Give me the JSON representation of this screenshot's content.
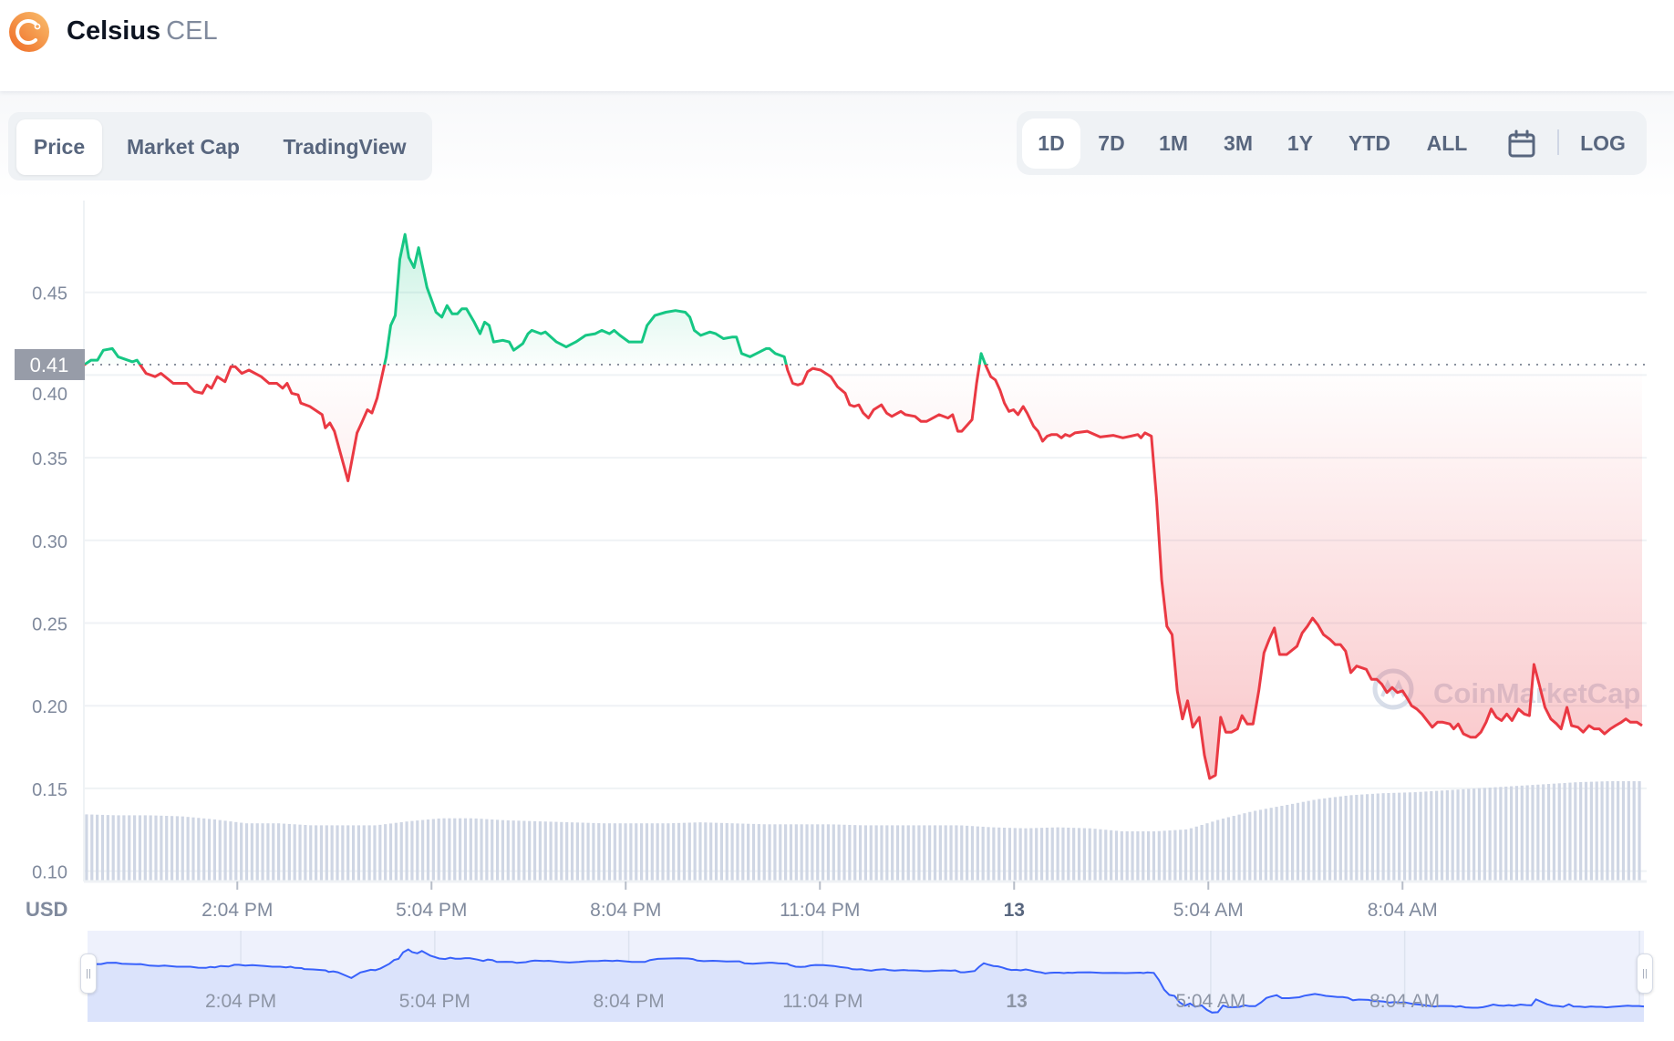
{
  "header": {
    "name": "Celsius",
    "symbol": "CEL",
    "logo_icon": "celsius-logo"
  },
  "tabs": [
    {
      "label": "Price",
      "active": true
    },
    {
      "label": "Market Cap",
      "active": false
    },
    {
      "label": "TradingView",
      "active": false
    }
  ],
  "ranges": [
    {
      "label": "1D",
      "active": true
    },
    {
      "label": "7D",
      "active": false
    },
    {
      "label": "1M",
      "active": false
    },
    {
      "label": "3M",
      "active": false
    },
    {
      "label": "1Y",
      "active": false
    },
    {
      "label": "YTD",
      "active": false
    },
    {
      "label": "ALL",
      "active": false
    }
  ],
  "calendar_icon": "calendar-icon",
  "log_label": "LOG",
  "colors": {
    "up": "#16c784",
    "down": "#ea3943",
    "navigator_line": "#3861fb",
    "volume": "#cfd6e4"
  },
  "chart_data": {
    "type": "line",
    "title": "",
    "xlabel": "",
    "ylabel": "",
    "currency_label": "USD",
    "watermark": "CoinMarketCap",
    "current_price_label": "0.41",
    "baseline_price": 0.4063,
    "x_unit": "hours since start of 1D window",
    "xlim": [
      0,
      24.07
    ],
    "ylim": [
      0.1,
      0.5
    ],
    "grid": true,
    "y_ticks": [
      {
        "value": 0.45,
        "label": "0.45"
      },
      {
        "value": 0.4,
        "label": "0.40"
      },
      {
        "value": 0.35,
        "label": "0.35"
      },
      {
        "value": 0.3,
        "label": "0.30"
      },
      {
        "value": 0.25,
        "label": "0.25"
      },
      {
        "value": 0.2,
        "label": "0.20"
      },
      {
        "value": 0.15,
        "label": "0.15"
      },
      {
        "value": 0.1,
        "label": "0.10"
      }
    ],
    "x_ticks": [
      {
        "t": 2.37,
        "label": "2:04 PM",
        "bold": false
      },
      {
        "t": 5.37,
        "label": "5:04 PM",
        "bold": false
      },
      {
        "t": 8.37,
        "label": "8:04 PM",
        "bold": false
      },
      {
        "t": 11.37,
        "label": "11:04 PM",
        "bold": false
      },
      {
        "t": 14.37,
        "label": "13",
        "bold": true
      },
      {
        "t": 17.37,
        "label": "5:04 AM",
        "bold": false
      },
      {
        "t": 20.37,
        "label": "8:04 AM",
        "bold": false
      }
    ],
    "price": [
      [
        0,
        0.406
      ],
      [
        0.11,
        0.409
      ],
      [
        0.21,
        0.409
      ],
      [
        0.3,
        0.415
      ],
      [
        0.44,
        0.416
      ],
      [
        0.53,
        0.411
      ],
      [
        0.75,
        0.408
      ],
      [
        0.82,
        0.409
      ],
      [
        0.96,
        0.401
      ],
      [
        1.1,
        0.399
      ],
      [
        1.19,
        0.401
      ],
      [
        1.38,
        0.395
      ],
      [
        1.59,
        0.395
      ],
      [
        1.71,
        0.39
      ],
      [
        1.83,
        0.389
      ],
      [
        1.9,
        0.394
      ],
      [
        1.97,
        0.392
      ],
      [
        2.06,
        0.399
      ],
      [
        2.18,
        0.396
      ],
      [
        2.27,
        0.405
      ],
      [
        2.34,
        0.405
      ],
      [
        2.44,
        0.401
      ],
      [
        2.55,
        0.403
      ],
      [
        2.74,
        0.399
      ],
      [
        2.86,
        0.395
      ],
      [
        2.98,
        0.395
      ],
      [
        3.07,
        0.392
      ],
      [
        3.14,
        0.395
      ],
      [
        3.21,
        0.389
      ],
      [
        3.31,
        0.388
      ],
      [
        3.35,
        0.383
      ],
      [
        3.49,
        0.381
      ],
      [
        3.68,
        0.376
      ],
      [
        3.73,
        0.368
      ],
      [
        3.8,
        0.371
      ],
      [
        3.87,
        0.366
      ],
      [
        4.08,
        0.336
      ],
      [
        4.22,
        0.365
      ],
      [
        4.29,
        0.371
      ],
      [
        4.38,
        0.379
      ],
      [
        4.45,
        0.377
      ],
      [
        4.53,
        0.386
      ],
      [
        4.67,
        0.411
      ],
      [
        4.74,
        0.43
      ],
      [
        4.81,
        0.436
      ],
      [
        4.88,
        0.47
      ],
      [
        4.96,
        0.485
      ],
      [
        5.02,
        0.471
      ],
      [
        5.1,
        0.465
      ],
      [
        5.17,
        0.477
      ],
      [
        5.3,
        0.453
      ],
      [
        5.44,
        0.438
      ],
      [
        5.53,
        0.435
      ],
      [
        5.61,
        0.442
      ],
      [
        5.69,
        0.437
      ],
      [
        5.77,
        0.437
      ],
      [
        5.84,
        0.44
      ],
      [
        5.91,
        0.44
      ],
      [
        6.03,
        0.432
      ],
      [
        6.12,
        0.425
      ],
      [
        6.19,
        0.432
      ],
      [
        6.26,
        0.43
      ],
      [
        6.33,
        0.42
      ],
      [
        6.47,
        0.421
      ],
      [
        6.57,
        0.42
      ],
      [
        6.64,
        0.415
      ],
      [
        6.71,
        0.417
      ],
      [
        6.78,
        0.419
      ],
      [
        6.86,
        0.425
      ],
      [
        6.92,
        0.427
      ],
      [
        7.06,
        0.425
      ],
      [
        7.13,
        0.426
      ],
      [
        7.3,
        0.42
      ],
      [
        7.45,
        0.417
      ],
      [
        7.6,
        0.42
      ],
      [
        7.75,
        0.424
      ],
      [
        7.9,
        0.425
      ],
      [
        8.0,
        0.427
      ],
      [
        8.12,
        0.425
      ],
      [
        8.19,
        0.427
      ],
      [
        8.28,
        0.424
      ],
      [
        8.42,
        0.42
      ],
      [
        8.62,
        0.42
      ],
      [
        8.7,
        0.43
      ],
      [
        8.82,
        0.436
      ],
      [
        8.99,
        0.438
      ],
      [
        9.14,
        0.439
      ],
      [
        9.29,
        0.438
      ],
      [
        9.36,
        0.435
      ],
      [
        9.43,
        0.427
      ],
      [
        9.53,
        0.424
      ],
      [
        9.67,
        0.426
      ],
      [
        9.76,
        0.425
      ],
      [
        9.88,
        0.422
      ],
      [
        10.02,
        0.423
      ],
      [
        10.08,
        0.423
      ],
      [
        10.16,
        0.413
      ],
      [
        10.29,
        0.411
      ],
      [
        10.39,
        0.413
      ],
      [
        10.54,
        0.416
      ],
      [
        10.59,
        0.416
      ],
      [
        10.68,
        0.413
      ],
      [
        10.82,
        0.411
      ],
      [
        10.87,
        0.403
      ],
      [
        10.95,
        0.395
      ],
      [
        11.03,
        0.394
      ],
      [
        11.1,
        0.395
      ],
      [
        11.18,
        0.402
      ],
      [
        11.26,
        0.404
      ],
      [
        11.38,
        0.403
      ],
      [
        11.5,
        0.4
      ],
      [
        11.54,
        0.399
      ],
      [
        11.64,
        0.393
      ],
      [
        11.76,
        0.389
      ],
      [
        11.83,
        0.382
      ],
      [
        11.9,
        0.381
      ],
      [
        11.97,
        0.382
      ],
      [
        12.04,
        0.377
      ],
      [
        12.12,
        0.374
      ],
      [
        12.2,
        0.379
      ],
      [
        12.32,
        0.382
      ],
      [
        12.4,
        0.377
      ],
      [
        12.48,
        0.375
      ],
      [
        12.62,
        0.378
      ],
      [
        12.69,
        0.376
      ],
      [
        12.84,
        0.375
      ],
      [
        12.93,
        0.372
      ],
      [
        13.02,
        0.372
      ],
      [
        13.21,
        0.376
      ],
      [
        13.35,
        0.374
      ],
      [
        13.42,
        0.376
      ],
      [
        13.5,
        0.366
      ],
      [
        13.56,
        0.366
      ],
      [
        13.63,
        0.369
      ],
      [
        13.72,
        0.373
      ],
      [
        13.79,
        0.395
      ],
      [
        13.86,
        0.413
      ],
      [
        13.94,
        0.405
      ],
      [
        14.01,
        0.399
      ],
      [
        14.08,
        0.397
      ],
      [
        14.15,
        0.391
      ],
      [
        14.22,
        0.383
      ],
      [
        14.29,
        0.378
      ],
      [
        14.36,
        0.379
      ],
      [
        14.43,
        0.376
      ],
      [
        14.51,
        0.381
      ],
      [
        14.57,
        0.377
      ],
      [
        14.67,
        0.369
      ],
      [
        14.74,
        0.366
      ],
      [
        14.81,
        0.36
      ],
      [
        14.88,
        0.363
      ],
      [
        14.95,
        0.364
      ],
      [
        15.03,
        0.364
      ],
      [
        15.1,
        0.362
      ],
      [
        15.16,
        0.364
      ],
      [
        15.23,
        0.363
      ],
      [
        15.31,
        0.365
      ],
      [
        15.5,
        0.366
      ],
      [
        15.7,
        0.3625
      ],
      [
        15.9,
        0.3635
      ],
      [
        16.05,
        0.362
      ],
      [
        16.17,
        0.363
      ],
      [
        16.28,
        0.364
      ],
      [
        16.33,
        0.362
      ],
      [
        16.39,
        0.365
      ],
      [
        16.49,
        0.363
      ],
      [
        16.57,
        0.325
      ],
      [
        16.65,
        0.276
      ],
      [
        16.73,
        0.248
      ],
      [
        16.81,
        0.243
      ],
      [
        16.89,
        0.209
      ],
      [
        16.97,
        0.192
      ],
      [
        17.05,
        0.203
      ],
      [
        17.13,
        0.187
      ],
      [
        17.23,
        0.193
      ],
      [
        17.31,
        0.17
      ],
      [
        17.39,
        0.156
      ],
      [
        17.48,
        0.158
      ],
      [
        17.56,
        0.193
      ],
      [
        17.64,
        0.184
      ],
      [
        17.73,
        0.184
      ],
      [
        17.82,
        0.186
      ],
      [
        17.89,
        0.194
      ],
      [
        17.97,
        0.189
      ],
      [
        18.06,
        0.189
      ],
      [
        18.15,
        0.209
      ],
      [
        18.23,
        0.232
      ],
      [
        18.31,
        0.24
      ],
      [
        18.39,
        0.247
      ],
      [
        18.47,
        0.231
      ],
      [
        18.58,
        0.231
      ],
      [
        18.74,
        0.236
      ],
      [
        18.82,
        0.244
      ],
      [
        18.9,
        0.248
      ],
      [
        18.98,
        0.253
      ],
      [
        19.06,
        0.249
      ],
      [
        19.15,
        0.243
      ],
      [
        19.25,
        0.24
      ],
      [
        19.33,
        0.237
      ],
      [
        19.41,
        0.237
      ],
      [
        19.49,
        0.233
      ],
      [
        19.57,
        0.22
      ],
      [
        19.66,
        0.224
      ],
      [
        19.81,
        0.222
      ],
      [
        19.89,
        0.216
      ],
      [
        19.97,
        0.216
      ],
      [
        20.05,
        0.213
      ],
      [
        20.13,
        0.208
      ],
      [
        20.21,
        0.211
      ],
      [
        20.29,
        0.208
      ],
      [
        20.37,
        0.209
      ],
      [
        20.45,
        0.204
      ],
      [
        20.51,
        0.2
      ],
      [
        20.59,
        0.198
      ],
      [
        20.67,
        0.195
      ],
      [
        20.83,
        0.187
      ],
      [
        20.91,
        0.19
      ],
      [
        20.99,
        0.19
      ],
      [
        21.1,
        0.189
      ],
      [
        21.16,
        0.186
      ],
      [
        21.23,
        0.189
      ],
      [
        21.31,
        0.183
      ],
      [
        21.42,
        0.181
      ],
      [
        21.5,
        0.181
      ],
      [
        21.58,
        0.184
      ],
      [
        21.66,
        0.19
      ],
      [
        21.74,
        0.198
      ],
      [
        21.82,
        0.193
      ],
      [
        21.9,
        0.191
      ],
      [
        21.98,
        0.195
      ],
      [
        22.06,
        0.191
      ],
      [
        22.16,
        0.198
      ],
      [
        22.25,
        0.195
      ],
      [
        22.33,
        0.194
      ],
      [
        22.4,
        0.225
      ],
      [
        22.48,
        0.213
      ],
      [
        22.57,
        0.199
      ],
      [
        22.66,
        0.192
      ],
      [
        22.75,
        0.189
      ],
      [
        22.82,
        0.186
      ],
      [
        22.91,
        0.199
      ],
      [
        22.98,
        0.188
      ],
      [
        23.08,
        0.187
      ],
      [
        23.16,
        0.184
      ],
      [
        23.25,
        0.188
      ],
      [
        23.33,
        0.186
      ],
      [
        23.41,
        0.186
      ],
      [
        23.49,
        0.183
      ],
      [
        23.58,
        0.186
      ],
      [
        23.66,
        0.188
      ],
      [
        23.75,
        0.19
      ],
      [
        23.82,
        0.192
      ],
      [
        23.89,
        0.19
      ],
      [
        23.99,
        0.19
      ],
      [
        24.07,
        0.188
      ]
    ],
    "volume_relative": [
      0.67,
      0.66,
      0.66,
      0.65,
      0.62,
      0.58,
      0.58,
      0.56,
      0.56,
      0.56,
      0.6,
      0.63,
      0.63,
      0.61,
      0.6,
      0.59,
      0.58,
      0.58,
      0.58,
      0.59,
      0.58,
      0.57,
      0.57,
      0.57,
      0.56,
      0.56,
      0.56,
      0.56,
      0.54,
      0.53,
      0.54,
      0.53,
      0.5,
      0.5,
      0.52,
      0.62,
      0.7,
      0.76,
      0.82,
      0.86,
      0.88,
      0.89,
      0.91,
      0.93,
      0.95,
      0.97,
      0.99,
      1.0,
      1.0
    ]
  }
}
